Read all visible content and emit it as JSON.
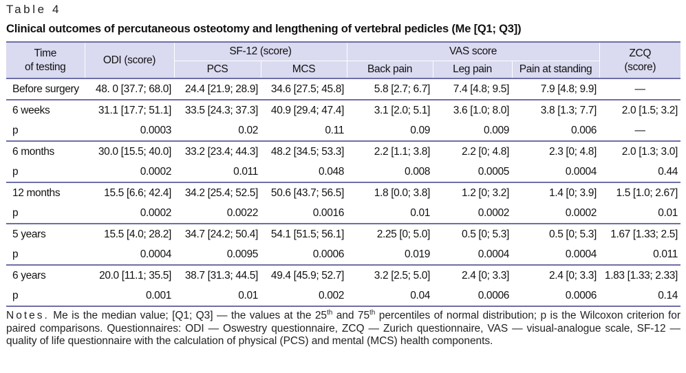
{
  "table_label": "Table 4",
  "caption": "Clinical outcomes of percutaneous osteotomy and lengthening of vertebral pedicles (Me [Q1; Q3])",
  "header": {
    "time_line1": "Time",
    "time_line2": "of testing",
    "odi": "ODI (score)",
    "sf12": "SF-12 (score)",
    "pcs": "PCS",
    "mcs": "MCS",
    "vas": "VAS score",
    "back_pain": "Back pain",
    "leg_pain": "Leg pain",
    "pain_standing": "Pain at standing",
    "zcq_line1": "ZCQ",
    "zcq_line2": "(score)"
  },
  "rows": [
    {
      "time": "Before surgery",
      "odi": "48. 0 [37.7; 68.0]",
      "pcs": "24.4 [21.9; 28.9]",
      "mcs": "34.6 [27.5; 45.8]",
      "back": "5.8 [2.7; 6.7]",
      "leg": "7.4 [4.8; 9.5]",
      "stand": "7.9 [4.8; 9.9]",
      "zcq": "—"
    },
    {
      "time": "6 weeks",
      "odi": "31.1 [17.7; 51.1]",
      "pcs": "33.5 [24.3; 37.3]",
      "mcs": "40.9 [29.4; 47.4]",
      "back": "3.1 [2.0; 5.1]",
      "leg": "3.6 [1.0; 8.0]",
      "stand": "3.8 [1.3; 7.7]",
      "zcq": "2.0 [1.5; 3.2]"
    },
    {
      "time": "p",
      "odi": "0.0003",
      "pcs": "0.02",
      "mcs": "0.11",
      "back": "0.09",
      "leg": "0.009",
      "stand": "0.006",
      "zcq": "—"
    },
    {
      "time": "6 months",
      "odi": "30.0 [15.5; 40.0]",
      "pcs": "33.2 [23.4; 44.3]",
      "mcs": "48.2 [34.5; 53.3]",
      "back": "2.2 [1.1; 3.8]",
      "leg": "2.2 [0; 4.8]",
      "stand": "2.3 [0; 4.8]",
      "zcq": "2.0 [1.3; 3.0]"
    },
    {
      "time": "p",
      "odi": "0.0002",
      "pcs": "0.011",
      "mcs": "0.048",
      "back": "0.008",
      "leg": "0.0005",
      "stand": "0.0004",
      "zcq": "0.44"
    },
    {
      "time": "12 months",
      "odi": "15.5 [6.6; 42.4]",
      "pcs": "34.2 [25.4; 52.5]",
      "mcs": "50.6 [43.7; 56.5]",
      "back": "1.8 [0.0; 3.8]",
      "leg": "1.2 [0; 3.2]",
      "stand": "1.4 [0; 3.9]",
      "zcq": "1.5 [1.0; 2.67]"
    },
    {
      "time": "p",
      "odi": "0.0002",
      "pcs": "0.0022",
      "mcs": "0.0016",
      "back": "0.01",
      "leg": "0.0002",
      "stand": "0.0002",
      "zcq": "0.01"
    },
    {
      "time": "5 years",
      "odi": "15.5 [4.0; 28.2]",
      "pcs": "34.7 [24.2; 50.4]",
      "mcs": "54.1 [51.5; 56.1]",
      "back": "2.25 [0; 5.0]",
      "leg": "0.5 [0; 5.3]",
      "stand": "0.5 [0; 5.3]",
      "zcq": "1.67 [1.33; 2.5]"
    },
    {
      "time": "p",
      "odi": "0.0004",
      "pcs": "0.0095",
      "mcs": "0.0006",
      "back": "0.019",
      "leg": "0.0004",
      "stand": "0.0004",
      "zcq": "0.011"
    },
    {
      "time": "6 years",
      "odi": "20.0 [11.1; 35.5]",
      "pcs": "38.7 [31.3; 44.5]",
      "mcs": "49.4 [45.9; 52.7]",
      "back": "3.2 [2.5; 5.0]",
      "leg": "2.4 [0; 3.3]",
      "stand": "2.4 [0; 3.3]",
      "zcq": "1.83 [1.33; 2.33]"
    },
    {
      "time": "p",
      "odi": "0.001",
      "pcs": "0.01",
      "mcs": "0.002",
      "back": "0.04",
      "leg": "0.0006",
      "stand": "0.0006",
      "zcq": "0.14"
    }
  ],
  "notes": {
    "prefix": "Notes.",
    "part1": " Me is the median value; [Q1; Q3] — the values at the 25",
    "sup1": "th",
    "part2": " and 75",
    "sup2": "th",
    "part3": " percentiles of normal distribution; p is the Wilcoxon criterion for paired comparisons. Questionnaires: ODI — Oswestry questionnaire, ZCQ — Zurich questionnaire, VAS — visual-analogue scale, SF-12 — quality of life questionnaire with the calculation of physical (PCS) and mental (MCS) health components."
  },
  "colors": {
    "header_bg": "#dadaf0",
    "rule": "#6e6ea6"
  }
}
